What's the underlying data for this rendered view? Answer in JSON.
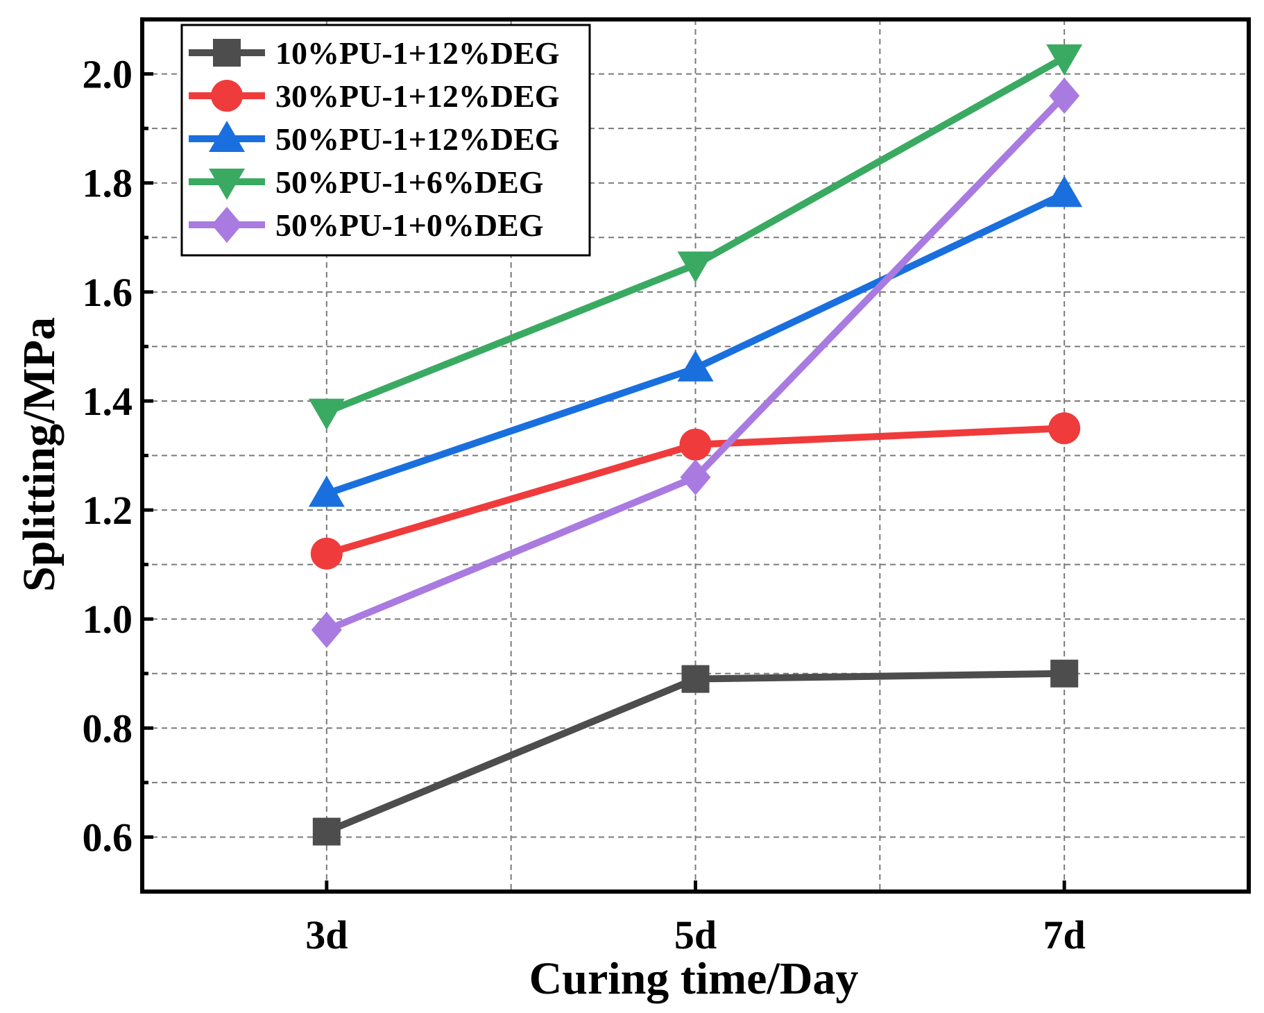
{
  "chart_data": {
    "type": "line",
    "title": "",
    "xlabel": "Curing time/Day",
    "ylabel": "Splitting/MPa",
    "categories": [
      "3d",
      "5d",
      "7d"
    ],
    "x_range": [
      0.5,
      3.5
    ],
    "ylim": [
      0.5,
      2.1
    ],
    "yticks": [
      {
        "value": 0.6,
        "label": "0.6"
      },
      {
        "value": 0.8,
        "label": "0.8"
      },
      {
        "value": 1.0,
        "label": "1.0"
      },
      {
        "value": 1.2,
        "label": "1.2"
      },
      {
        "value": 1.4,
        "label": "1.4"
      },
      {
        "value": 1.6,
        "label": "1.6"
      },
      {
        "value": 1.8,
        "label": "1.8"
      },
      {
        "value": 2.0,
        "label": "2.0"
      }
    ],
    "y_minor_step": 0.1,
    "x_minor_step": 0.5,
    "grid": true,
    "legend_position": "top-left",
    "series": [
      {
        "name": "10%PU-1+12%DEG",
        "color": "#4d4d4d",
        "marker": "square",
        "values": [
          0.61,
          0.89,
          0.9
        ]
      },
      {
        "name": "30%PU-1+12%DEG",
        "color": "#ef3b3b",
        "marker": "circle",
        "values": [
          1.12,
          1.32,
          1.35
        ]
      },
      {
        "name": "50%PU-1+12%DEG",
        "color": "#1a6fde",
        "marker": "triangle-up",
        "values": [
          1.23,
          1.46,
          1.78
        ]
      },
      {
        "name": "50%PU-1+6%DEG",
        "color": "#3aaa62",
        "marker": "triangle-down",
        "values": [
          1.38,
          1.65,
          2.03
        ]
      },
      {
        "name": "50%PU-1+0%DEG",
        "color": "#a97be0",
        "marker": "diamond",
        "values": [
          0.98,
          1.26,
          1.96
        ]
      }
    ]
  }
}
